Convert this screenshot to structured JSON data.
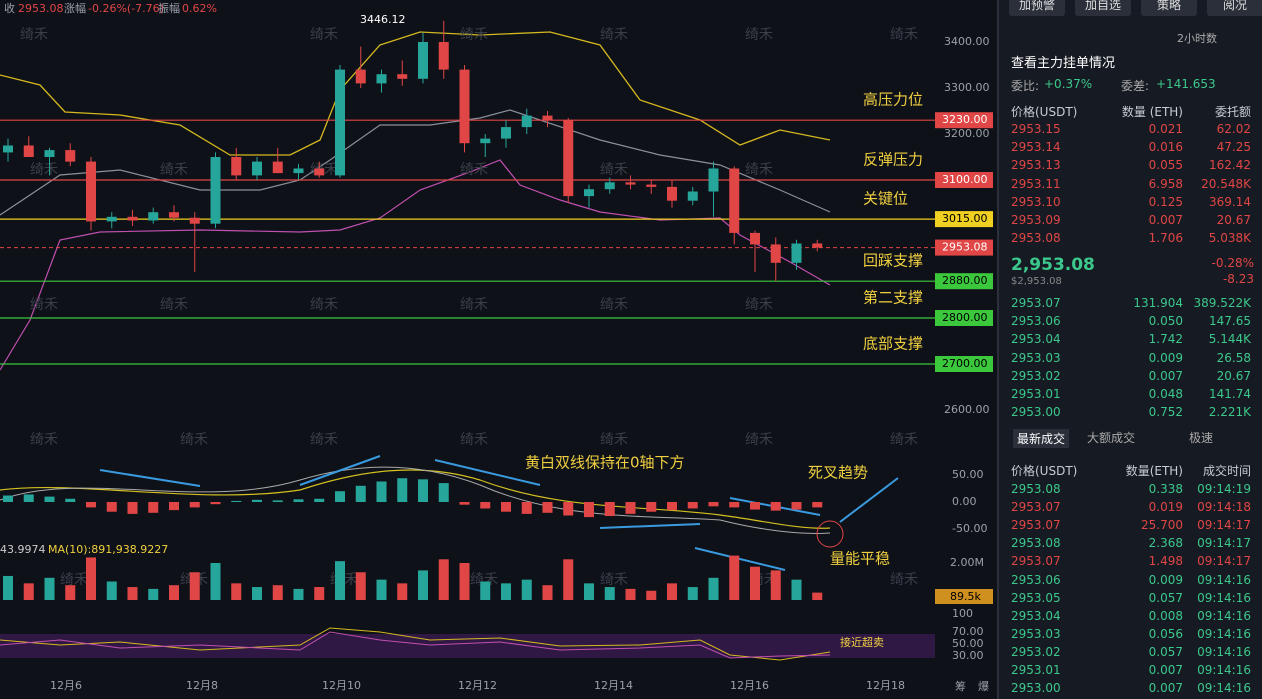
{
  "header": {
    "close_label": "收",
    "close": "2953.08",
    "change_label": "涨幅",
    "change": "-0.26%(-7.76)",
    "amp_label": "振幅",
    "amp": "0.62%"
  },
  "watermark": "绮禾",
  "buttons": [
    "加预警",
    "加自选",
    "策略",
    "阅况"
  ],
  "chart": {
    "yticks": [
      {
        "value": 3400,
        "label": "3400.00"
      },
      {
        "value": 3300,
        "label": "3300.00"
      },
      {
        "value": 3200,
        "label": "3200.00"
      },
      {
        "value": 2600,
        "label": "2600.00"
      }
    ],
    "high_label": "3446.12",
    "current": 2953.08,
    "levels": [
      {
        "name": "高压力位",
        "price": {
          "value": 3230,
          "label": "3230.00"
        },
        "color": "#e04646"
      },
      {
        "name": "反弹压力",
        "price": {
          "value": 3100,
          "label": "3100.00"
        },
        "color": "#e04646"
      },
      {
        "name": "关键位",
        "price": {
          "value": 3015,
          "label": "3015.00"
        },
        "color": "#f0d020"
      },
      {
        "name": "回踩支撑",
        "price": {
          "value": 2880,
          "label": "2880.00"
        },
        "color": "#3cc83c"
      },
      {
        "name": "第二支撑",
        "price": {
          "value": 2800,
          "label": "2800.00"
        },
        "color": "#3cc83c"
      },
      {
        "name": "底部支撑",
        "price": {
          "value": 2700,
          "label": "2700.00"
        },
        "color": "#3cc83c"
      }
    ],
    "candles": [
      [
        3160,
        3190,
        3140,
        3175
      ],
      [
        3175,
        3195,
        3150,
        3150
      ],
      [
        3150,
        3170,
        3110,
        3165
      ],
      [
        3165,
        3180,
        3130,
        3140
      ],
      [
        3140,
        3150,
        2990,
        3010
      ],
      [
        3010,
        3030,
        2995,
        3020
      ],
      [
        3020,
        3035,
        3000,
        3012
      ],
      [
        3012,
        3040,
        3005,
        3030
      ],
      [
        3030,
        3045,
        3010,
        3018
      ],
      [
        3018,
        3030,
        2900,
        3005
      ],
      [
        3005,
        3160,
        2995,
        3150
      ],
      [
        3150,
        3170,
        3100,
        3110
      ],
      [
        3110,
        3150,
        3100,
        3140
      ],
      [
        3140,
        3170,
        3120,
        3115
      ],
      [
        3115,
        3135,
        3100,
        3125
      ],
      [
        3125,
        3140,
        3105,
        3110
      ],
      [
        3110,
        3350,
        3105,
        3340
      ],
      [
        3340,
        3390,
        3300,
        3310
      ],
      [
        3310,
        3340,
        3290,
        3330
      ],
      [
        3330,
        3360,
        3305,
        3320
      ],
      [
        3320,
        3420,
        3310,
        3400
      ],
      [
        3400,
        3446.12,
        3320,
        3340
      ],
      [
        3340,
        3350,
        3160,
        3180
      ],
      [
        3180,
        3200,
        3150,
        3190
      ],
      [
        3190,
        3230,
        3170,
        3215
      ],
      [
        3215,
        3255,
        3200,
        3240
      ],
      [
        3240,
        3250,
        3215,
        3230
      ],
      [
        3230,
        3235,
        3050,
        3065
      ],
      [
        3065,
        3090,
        3040,
        3080
      ],
      [
        3080,
        3105,
        3070,
        3095
      ],
      [
        3095,
        3110,
        3080,
        3090
      ],
      [
        3090,
        3100,
        3070,
        3085
      ],
      [
        3085,
        3100,
        3040,
        3055
      ],
      [
        3055,
        3085,
        3045,
        3075
      ],
      [
        3075,
        3140,
        3020,
        3125
      ],
      [
        3125,
        3130,
        2960,
        2985
      ],
      [
        2985,
        2990,
        2900,
        2960
      ],
      [
        2960,
        2975,
        2880,
        2920
      ],
      [
        2920,
        2970,
        2905,
        2962
      ],
      [
        2962,
        2970,
        2945,
        2953.08
      ]
    ],
    "macd": [
      12,
      14,
      10,
      6,
      -10,
      -18,
      -22,
      -20,
      -15,
      -10,
      -4,
      2,
      4,
      3,
      5,
      6,
      20,
      30,
      38,
      44,
      42,
      35,
      -5,
      -12,
      -18,
      -22,
      -20,
      -25,
      -28,
      -26,
      -22,
      -18,
      -15,
      -12,
      -8,
      -10,
      -14,
      -16,
      -14,
      -10
    ],
    "macd_ticks": [
      {
        "value": 50,
        "label": "50.00"
      },
      {
        "value": 0,
        "label": "0.00"
      },
      {
        "value": -50,
        "label": "-50.00"
      }
    ],
    "volume": [
      1300000,
      900000,
      1200000,
      800000,
      2300000,
      1000000,
      700000,
      600000,
      800000,
      1500000,
      2000000,
      900000,
      700000,
      800000,
      600000,
      700000,
      2100000,
      1500000,
      1100000,
      900000,
      1600000,
      2200000,
      2000000,
      1000000,
      900000,
      1100000,
      800000,
      2200000,
      900000,
      700000,
      600000,
      500000,
      900000,
      700000,
      1200000,
      2400000,
      1800000,
      1600000,
      1100000,
      400000
    ],
    "volume_ticks": [
      {
        "value": 2000000,
        "label": "2.00M"
      }
    ],
    "volume_current": "89.5k",
    "ma_text": "43.9974",
    "ma10_text": "MA(10):891,938.9227",
    "rsi_ticks": [
      100,
      {
        "value": 70,
        "label": "70.00"
      },
      {
        "value": 50,
        "label": "50.00"
      },
      {
        "value": 30,
        "label": "30.00"
      }
    ],
    "annotations": {
      "macd": "黄白双线保持在0轴下方",
      "cross": "死叉趋势",
      "volume": "量能平稳",
      "rsi": "接近超卖"
    },
    "x_labels": [
      "12月6",
      "12月8",
      "12月10",
      "12月12",
      "12月14",
      "12月16",
      "12月18"
    ],
    "corner": [
      "筹",
      "爆"
    ]
  },
  "panel": {
    "interval": "2小时数",
    "depth_title": "查看主力挂单情况",
    "ratio_label": "委比:",
    "ratio": "+0.37%",
    "diff_label": "委差:",
    "diff": "+141.653",
    "cols": [
      "价格(USDT)",
      "数量 (ETH)",
      "委托额"
    ],
    "asks": [
      [
        "2953.15",
        "0.021",
        "62.02"
      ],
      [
        "2953.14",
        "0.016",
        "47.25"
      ],
      [
        "2953.13",
        "0.055",
        "162.42"
      ],
      [
        "2953.11",
        "6.958",
        "20.548K"
      ],
      [
        "2953.10",
        "0.125",
        "369.14"
      ],
      [
        "2953.09",
        "0.007",
        "20.67"
      ],
      [
        "2953.08",
        "1.706",
        "5.038K"
      ]
    ],
    "mid": "2,953.08",
    "mid_usd": "$2,953.08",
    "mid_pct": "-0.28%",
    "mid_chg": "-8.23",
    "bids": [
      [
        "2953.07",
        "131.904",
        "389.522K"
      ],
      [
        "2953.06",
        "0.050",
        "147.65"
      ],
      [
        "2953.04",
        "1.742",
        "5.144K"
      ],
      [
        "2953.03",
        "0.009",
        "26.58"
      ],
      [
        "2953.02",
        "0.007",
        "20.67"
      ],
      [
        "2953.01",
        "0.048",
        "141.74"
      ],
      [
        "2953.00",
        "0.752",
        "2.221K"
      ]
    ],
    "tabs": [
      "最新成交",
      "大额成交",
      "极速"
    ],
    "trade_cols": [
      "价格(USDT)",
      "数量(ETH)",
      "成交时间"
    ],
    "trades": [
      {
        "price": "2953.08",
        "qty": "0.338",
        "time": "09:14:19",
        "side": "buy"
      },
      {
        "price": "2953.07",
        "qty": "0.019",
        "time": "09:14:18",
        "side": "sell"
      },
      {
        "price": "2953.07",
        "qty": "25.700",
        "time": "09:14:17",
        "side": "sell"
      },
      {
        "price": "2953.08",
        "qty": "2.368",
        "time": "09:14:17",
        "side": "buy"
      },
      {
        "price": "2953.07",
        "qty": "1.498",
        "time": "09:14:17",
        "side": "sell"
      },
      {
        "price": "2953.06",
        "qty": "0.009",
        "time": "09:14:16",
        "side": "buy"
      },
      {
        "price": "2953.05",
        "qty": "0.057",
        "time": "09:14:16",
        "side": "buy"
      },
      {
        "price": "2953.04",
        "qty": "0.008",
        "time": "09:14:16",
        "side": "buy"
      },
      {
        "price": "2953.03",
        "qty": "0.056",
        "time": "09:14:16",
        "side": "buy"
      },
      {
        "price": "2953.02",
        "qty": "0.057",
        "time": "09:14:16",
        "side": "buy"
      },
      {
        "price": "2953.01",
        "qty": "0.007",
        "time": "09:14:16",
        "side": "buy"
      },
      {
        "price": "2953.00",
        "qty": "0.007",
        "time": "09:14:16",
        "side": "buy"
      }
    ]
  }
}
